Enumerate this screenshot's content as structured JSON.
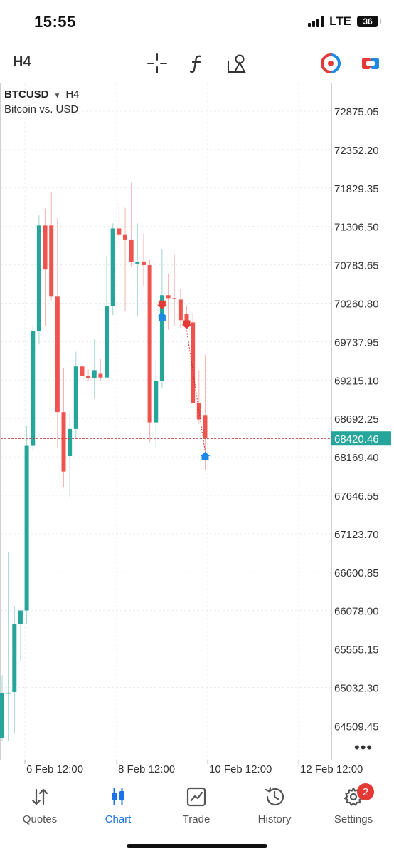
{
  "status_bar": {
    "time": "15:55",
    "network": "LTE",
    "battery": "36"
  },
  "toolbar": {
    "timeframe": "H4",
    "tools": [
      "crosshair-icon",
      "function-icon",
      "objects-icon",
      "one-click-trading-icon",
      "trade-toggle-icon"
    ]
  },
  "chart": {
    "symbol": "BTCUSD",
    "timeframe_label": "H4",
    "description": "Bitcoin vs. USD",
    "current_price": "68420.46",
    "price_labels": [
      "72875.05",
      "72352.20",
      "71829.35",
      "71306.50",
      "70783.65",
      "70260.80",
      "69737.95",
      "69215.10",
      "68692.25",
      "68169.40",
      "67646.55",
      "67123.70",
      "66600.85",
      "66078.00",
      "65555.15",
      "65032.30",
      "64509.45"
    ],
    "time_labels": [
      "6 Feb 12:00",
      "8 Feb 12:00",
      "10 Feb 12:00",
      "12 Feb 12:00"
    ],
    "colors": {
      "bull": "#26a69a",
      "bear": "#ef5350",
      "bid_line": "#c62828",
      "price_tag": "#26a69a",
      "grid": "#ececec"
    }
  },
  "chart_data": {
    "type": "candlestick",
    "symbol": "BTCUSD",
    "timeframe": "H4",
    "ylim": [
      64200,
      73150
    ],
    "candles": [
      {
        "o": 64340,
        "h": 65200,
        "l": 64300,
        "c": 64950
      },
      {
        "o": 64950,
        "h": 66880,
        "l": 64300,
        "c": 64960
      },
      {
        "o": 64970,
        "h": 66140,
        "l": 64400,
        "c": 65900
      },
      {
        "o": 65900,
        "h": 66000,
        "l": 65400,
        "c": 66080
      },
      {
        "o": 66080,
        "h": 68600,
        "l": 65900,
        "c": 68320
      },
      {
        "o": 68320,
        "h": 69950,
        "l": 68250,
        "c": 69880
      },
      {
        "o": 69880,
        "h": 71470,
        "l": 69700,
        "c": 71320
      },
      {
        "o": 71320,
        "h": 71550,
        "l": 69950,
        "c": 70720
      },
      {
        "o": 71320,
        "h": 71770,
        "l": 70300,
        "c": 70350
      },
      {
        "o": 70350,
        "h": 71420,
        "l": 68300,
        "c": 68780
      },
      {
        "o": 68780,
        "h": 69380,
        "l": 67760,
        "c": 67970
      },
      {
        "o": 68180,
        "h": 68780,
        "l": 67620,
        "c": 68550
      },
      {
        "o": 68550,
        "h": 69600,
        "l": 68420,
        "c": 69400
      },
      {
        "o": 69400,
        "h": 69420,
        "l": 69100,
        "c": 69270
      },
      {
        "o": 69270,
        "h": 69360,
        "l": 69200,
        "c": 69240
      },
      {
        "o": 69240,
        "h": 69780,
        "l": 68960,
        "c": 69350
      },
      {
        "o": 69300,
        "h": 69500,
        "l": 69200,
        "c": 69250
      },
      {
        "o": 69250,
        "h": 70900,
        "l": 69250,
        "c": 70220
      },
      {
        "o": 70220,
        "h": 71350,
        "l": 70100,
        "c": 71280
      },
      {
        "o": 71280,
        "h": 71640,
        "l": 70990,
        "c": 71190
      },
      {
        "o": 71190,
        "h": 71560,
        "l": 70150,
        "c": 71120
      },
      {
        "o": 71120,
        "h": 71900,
        "l": 70750,
        "c": 70820
      },
      {
        "o": 70800,
        "h": 71350,
        "l": 70080,
        "c": 70820
      },
      {
        "o": 70830,
        "h": 71210,
        "l": 70500,
        "c": 70780
      },
      {
        "o": 70780,
        "h": 70850,
        "l": 68370,
        "c": 68640
      },
      {
        "o": 68640,
        "h": 69510,
        "l": 68300,
        "c": 69200
      },
      {
        "o": 69200,
        "h": 71000,
        "l": 69100,
        "c": 70370
      },
      {
        "o": 70370,
        "h": 70660,
        "l": 69900,
        "c": 70330
      },
      {
        "o": 70330,
        "h": 70920,
        "l": 69950,
        "c": 70320
      },
      {
        "o": 70310,
        "h": 70460,
        "l": 69930,
        "c": 70030
      },
      {
        "o": 70120,
        "h": 70220,
        "l": 69950,
        "c": 70000
      },
      {
        "o": 70000,
        "h": 70130,
        "l": 68890,
        "c": 68900
      },
      {
        "o": 68900,
        "h": 69350,
        "l": 68620,
        "c": 68680
      },
      {
        "o": 68740,
        "h": 69560,
        "l": 67990,
        "c": 68420
      }
    ],
    "trade_markers": [
      {
        "index": 26,
        "price": 70220,
        "side": "sell"
      },
      {
        "index": 26,
        "price": 70100,
        "side": "buy"
      },
      {
        "index": 30,
        "price": 69950,
        "side": "sell"
      },
      {
        "index": 33,
        "price": 68200,
        "side": "buy"
      }
    ],
    "bid_line": 68420.46
  },
  "nav": {
    "items": [
      {
        "key": "quotes",
        "label": "Quotes"
      },
      {
        "key": "chart",
        "label": "Chart"
      },
      {
        "key": "trade",
        "label": "Trade"
      },
      {
        "key": "history",
        "label": "History"
      },
      {
        "key": "settings",
        "label": "Settings"
      }
    ],
    "settings_badge": "2"
  }
}
